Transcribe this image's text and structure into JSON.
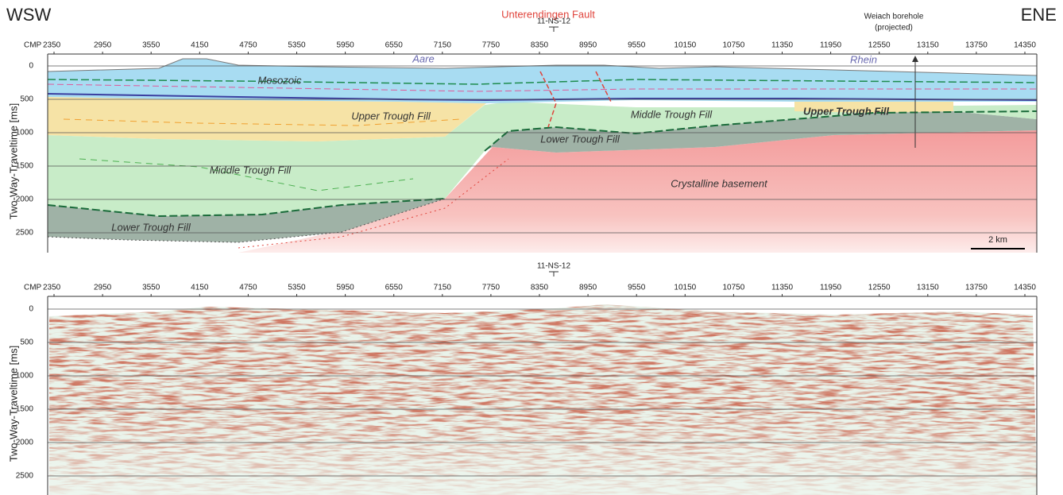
{
  "header": {
    "left": "WSW",
    "right": "ENE"
  },
  "annotations": {
    "fault": "Unterendingen Fault",
    "borehole": "Weiach borehole",
    "borehole_note": "(projected)",
    "scale": "2 km"
  },
  "panels": [
    {
      "line_name": "11-NS-12",
      "x_axis_label": "CMP",
      "y_axis_label": "Two-Way-Traveltime [ms]",
      "xticks": [
        2350,
        2950,
        3550,
        4150,
        4750,
        5350,
        5950,
        6550,
        7150,
        7750,
        8350,
        8950,
        9550,
        10150,
        10750,
        11350,
        11950,
        12550,
        13150,
        13750,
        14350
      ],
      "yticks": [
        0,
        500,
        1000,
        1500,
        2000,
        2500
      ],
      "labels": [
        "Aare",
        "Rhein",
        "Mesozoic",
        "Upper Trough Fill",
        "Middle Trough Fill",
        "Upper Trough Fill",
        "Lower Trough Fill",
        "Middle Trough Fill",
        "Crystalline basement",
        "Lower Trough Fill"
      ]
    },
    {
      "line_name": "11-NS-12",
      "x_axis_label": "CMP",
      "y_axis_label": "Two-Way-Traveltime [ms]",
      "xticks": [
        2350,
        2950,
        3550,
        4150,
        4750,
        5350,
        5950,
        6550,
        7150,
        7750,
        8350,
        8950,
        9550,
        10150,
        10750,
        11350,
        11950,
        12550,
        13150,
        13750,
        14350
      ],
      "yticks": [
        0,
        500,
        1000,
        1500,
        2000,
        2500
      ]
    }
  ]
}
